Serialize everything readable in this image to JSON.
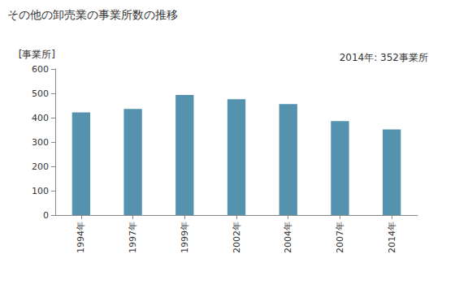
{
  "chart_data": {
    "type": "bar",
    "title": "その他の卸売業の事業所数の推移",
    "y_label": "[事業所]",
    "annotation": "2014年: 352事業所",
    "categories": [
      "1994年",
      "1997年",
      "1999年",
      "2002年",
      "2004年",
      "2007年",
      "2014年"
    ],
    "values": [
      422,
      436,
      493,
      476,
      456,
      386,
      352
    ],
    "color": "#5592ad",
    "ylim": [
      0,
      600
    ],
    "yticks": [
      0,
      100,
      200,
      300,
      400,
      500,
      600
    ],
    "grid": false,
    "data_labels": false
  }
}
